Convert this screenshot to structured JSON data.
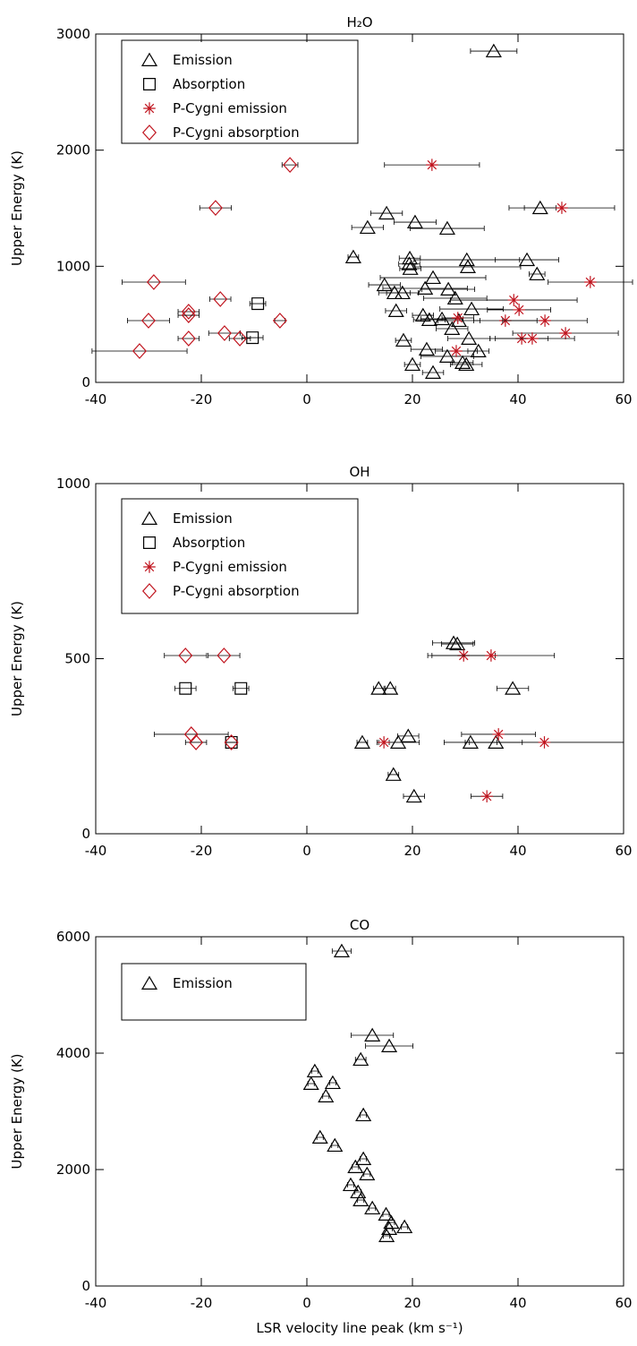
{
  "chart_data": [
    {
      "type": "scatter",
      "title": "H₂O",
      "ylabel": "Upper Energy (K)",
      "xlim": [
        -40,
        60
      ],
      "ylim": [
        0,
        3000
      ],
      "xticks": [
        -40,
        -20,
        0,
        20,
        40,
        60
      ],
      "yticks": [
        0,
        1000,
        2000,
        3000
      ],
      "series": [
        {
          "name": "Emission",
          "color": "#000000",
          "marker": "triangle",
          "x": [
            35.4,
            15.1,
            11.5,
            20.5,
            26.6,
            44.2,
            8.8,
            19.5,
            19.4,
            19.6,
            30.3,
            30.5,
            41.7,
            43.6,
            23.9,
            14.7,
            16.6,
            18.1,
            22.4,
            26.8,
            28.1,
            16.9,
            22.0,
            23.2,
            25.6,
            31.2,
            27.5,
            18.3,
            30.7,
            32.5,
            22.7,
            26.6,
            20.0,
            23.9,
            29.5,
            30.2,
            28.8
          ],
          "values": [
            2853,
            1457,
            1334,
            1380,
            1326,
            1503,
            1080,
            1070,
            1020,
            980,
            1056,
            995,
            1056,
            933,
            902,
            840,
            771,
            771,
            810,
            802,
            725,
            617,
            578,
            540,
            547,
            632,
            463,
            362,
            378,
            270,
            285,
            224,
            154,
            85,
            170,
            154,
            532
          ],
          "xerr": [
            4.4,
            3,
            3,
            4,
            7,
            3,
            1,
            2,
            2,
            2,
            10,
            10,
            6,
            1.5,
            10,
            3,
            3,
            3,
            8,
            5,
            6,
            2,
            2,
            3,
            4,
            6,
            3,
            1.5,
            4,
            2,
            3,
            5,
            1.5,
            2,
            2,
            3,
            4
          ]
        },
        {
          "name": "Absorption",
          "color": "#000000",
          "marker": "square",
          "x": [
            -9.3,
            -10.3
          ],
          "values": [
            678,
            385
          ],
          "xerr": [
            1.5,
            2
          ]
        },
        {
          "name": "P-Cygni emission",
          "color": "#c0141e",
          "marker": "asterisk",
          "x": [
            23.7,
            48.3,
            53.7,
            39.2,
            40.2,
            37.6,
            45.1,
            49.0,
            40.7,
            42.7,
            28.6,
            28.3
          ],
          "values": [
            1873,
            1503,
            864,
            709,
            625,
            532,
            532,
            424,
            378,
            378,
            555,
            270
          ],
          "xerr": [
            9,
            10,
            8,
            12,
            6,
            6,
            8,
            10,
            5,
            8,
            3,
            4
          ]
        },
        {
          "name": "P-Cygni absorption",
          "color": "#c0141e",
          "marker": "diamond",
          "x": [
            -3.2,
            -17.3,
            -29.0,
            -16.4,
            -22.4,
            -22.4,
            -30.0,
            -5.1,
            -15.6,
            -22.4,
            -12.7,
            -31.7
          ],
          "values": [
            1873,
            1503,
            864,
            717,
            609,
            578,
            532,
            532,
            424,
            378,
            378,
            270
          ],
          "xerr": [
            1.5,
            3,
            6,
            2,
            2,
            2,
            4,
            1,
            3,
            2,
            2,
            9
          ]
        }
      ]
    },
    {
      "type": "scatter",
      "title": "OH",
      "ylabel": "Upper Energy (K)",
      "xlim": [
        -40,
        60
      ],
      "ylim": [
        0,
        1000
      ],
      "xticks": [
        -40,
        -20,
        0,
        20,
        40,
        60
      ],
      "yticks": [
        0,
        500,
        1000
      ],
      "series": [
        {
          "name": "Emission",
          "color": "#000000",
          "marker": "triangle",
          "x": [
            27.8,
            28.5,
            39.0,
            13.6,
            15.8,
            10.5,
            17.3,
            19.2,
            31.0,
            35.8,
            16.4,
            20.3
          ],
          "values": [
            545,
            542,
            415,
            415,
            415,
            261,
            261,
            279,
            261,
            261,
            169,
            107
          ],
          "xerr": [
            4,
            3,
            3,
            1,
            1,
            1,
            4,
            2,
            5,
            5,
            1,
            2
          ]
        },
        {
          "name": "Absorption",
          "color": "#000000",
          "marker": "square",
          "x": [
            -23.0,
            -12.5,
            -14.3
          ],
          "values": [
            415,
            415,
            261
          ],
          "xerr": [
            2,
            1.5,
            1
          ]
        },
        {
          "name": "P-Cygni emission",
          "color": "#c0141e",
          "marker": "asterisk",
          "x": [
            29.7,
            34.9,
            14.6,
            36.3,
            45.0,
            34.1
          ],
          "values": [
            509,
            509,
            261,
            284,
            261,
            107
          ],
          "xerr": [
            6,
            12,
            1,
            7,
            15,
            3
          ]
        },
        {
          "name": "P-Cygni absorption",
          "color": "#c0141e",
          "marker": "diamond",
          "x": [
            -23.0,
            -15.7,
            -21.9,
            -21.0,
            -14.3
          ],
          "values": [
            509,
            509,
            284,
            261,
            261
          ],
          "xerr": [
            4,
            3,
            7,
            2,
            1
          ]
        }
      ]
    },
    {
      "type": "scatter",
      "title": "CO",
      "ylabel": "Upper Energy (K)",
      "xlabel": "LSR velocity line peak (km s⁻¹)",
      "xlim": [
        -40,
        60
      ],
      "ylim": [
        0,
        6000
      ],
      "xticks": [
        -40,
        -20,
        0,
        20,
        40,
        60
      ],
      "yticks": [
        0,
        2000,
        4000,
        6000
      ],
      "series": [
        {
          "name": "Emission",
          "color": "#000000",
          "marker": "triangle",
          "x": [
            6.6,
            12.4,
            15.6,
            10.2,
            1.5,
            0.8,
            4.9,
            3.6,
            10.7,
            2.5,
            5.3,
            10.7,
            9.2,
            11.4,
            8.3,
            9.7,
            10.2,
            12.4,
            15.0,
            16.0,
            18.5,
            15.1,
            15.6
          ],
          "values": [
            5754,
            4308,
            4123,
            3892,
            3692,
            3477,
            3492,
            3262,
            2938,
            2554,
            2415,
            2185,
            2046,
            1923,
            1738,
            1615,
            1477,
            1338,
            1231,
            1092,
            1015,
            862,
            985
          ],
          "xerr": [
            1.8,
            4,
            4.5,
            1,
            0.6,
            0.6,
            0.6,
            0.6,
            0.6,
            0.6,
            0.6,
            0.6,
            0.6,
            0.6,
            0.6,
            0.6,
            0.6,
            0.6,
            0.6,
            0.6,
            0.6,
            0.6,
            0.6
          ]
        }
      ]
    }
  ]
}
